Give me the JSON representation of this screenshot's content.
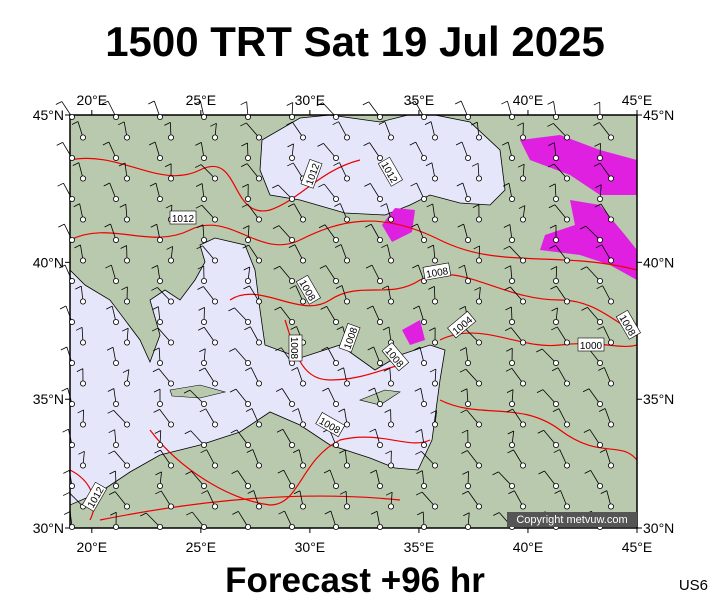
{
  "header": {
    "title": "1500 TRT Sat 19 Jul 2025"
  },
  "map": {
    "lon_range": [
      19,
      45
    ],
    "lat_range": [
      30,
      45
    ],
    "lon_ticks": [
      {
        "value": 20,
        "label": "20°E"
      },
      {
        "value": 25,
        "label": "25°E"
      },
      {
        "value": 30,
        "label": "30°E"
      },
      {
        "value": 35,
        "label": "35°E"
      },
      {
        "value": 40,
        "label": "40°E"
      },
      {
        "value": 45,
        "label": "45°E"
      }
    ],
    "lat_ticks": [
      {
        "value": 30,
        "label": "30°N"
      },
      {
        "value": 35,
        "label": "35°N"
      },
      {
        "value": 40,
        "label": "40°N"
      },
      {
        "value": 45,
        "label": "45°N"
      }
    ],
    "isobar_labels": [
      "1012",
      "1012",
      "1012",
      "1008",
      "1008",
      "1008",
      "1008",
      "1008",
      "1004",
      "1000",
      "1008",
      "1008",
      "1012"
    ],
    "copyright": "Copyright metvuw.com"
  },
  "footer": {
    "forecast": "Forecast +96 hr",
    "code": "US6"
  }
}
